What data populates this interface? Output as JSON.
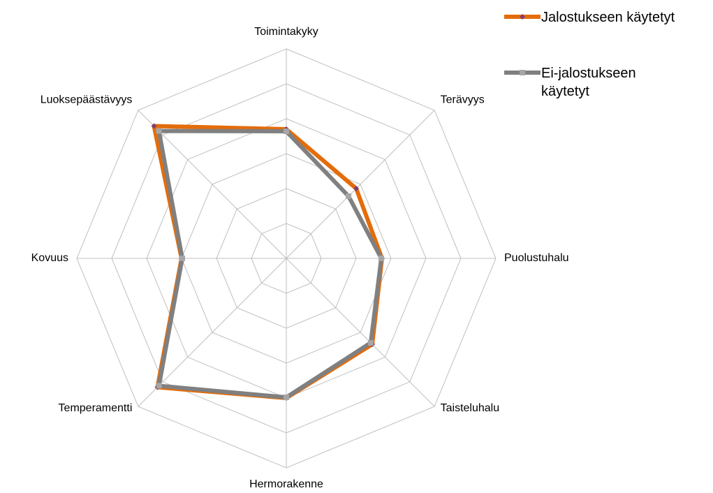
{
  "chart_data": {
    "type": "radar",
    "categories": [
      "Toimintakyky",
      "Terävyys",
      "Puolustuhalu",
      "Taisteluhalu",
      "Hermorakenne",
      "Temperamentti",
      "Kovuus",
      "Luoksepäästävyys"
    ],
    "series": [
      {
        "name": "Jalostukseen käytetyt",
        "color": "#e46c0a",
        "marker_color": "#7f3f6f",
        "marker": "diamond",
        "values": [
          3.7,
          2.83,
          2.74,
          3.48,
          4.0,
          5.22,
          3.0,
          5.36
        ]
      },
      {
        "name": "Ei-jalostukseen käytetyt",
        "color": "#808080",
        "marker_color": "#a6a6a6",
        "marker": "square",
        "values": [
          3.64,
          2.52,
          2.72,
          3.42,
          3.98,
          5.16,
          2.98,
          5.16
        ]
      }
    ],
    "rlim": [
      0,
      6
    ],
    "rticks": [
      1,
      2,
      3,
      4,
      5,
      6
    ],
    "grid": true,
    "legend": "top-right"
  }
}
